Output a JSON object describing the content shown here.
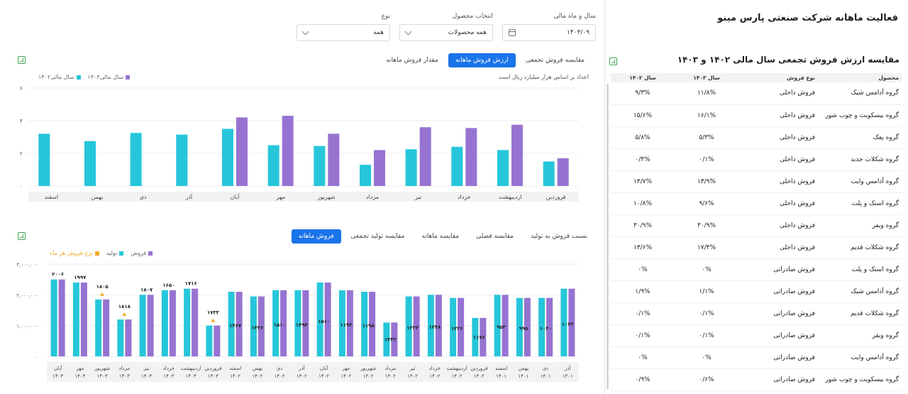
{
  "app_title": "فعالیت ماهانه شرکت صنعتی پارس مینو",
  "filters": {
    "period": {
      "label": "سال و ماه مالی",
      "value": "۱۴۰۳/۰۹"
    },
    "product": {
      "label": "انتخاب محصول",
      "value": "همه محصولات"
    },
    "type": {
      "label": "نوع",
      "value": "همه"
    }
  },
  "top_tabs": [
    {
      "label": "مقدار فروش ماهانه"
    },
    {
      "label": "ارزش فروش ماهانه"
    },
    {
      "label": "مقایسه فروش تجمعی"
    }
  ],
  "top_chart_note": "اعداد بر اساس هزار میلیارد ریال است",
  "top_legend": [
    {
      "label": "سال مالی۱۴۰۳",
      "color": "#9673d1"
    },
    {
      "label": "سال مالی۱۴۰۲",
      "color": "#26c6da"
    }
  ],
  "bottom_tabs": [
    {
      "label": "فروش ماهانه"
    },
    {
      "label": "مقایسه تولید تجمعی"
    },
    {
      "label": "مقایسه ماهانه"
    },
    {
      "label": "مقایسه فصلی"
    },
    {
      "label": "نسبت فروش به تولید"
    }
  ],
  "bottom_legend": [
    {
      "label": "فروش",
      "color": "#9673d1"
    },
    {
      "label": "تولید",
      "color": "#26c6da"
    },
    {
      "label": "نرخ فروش هر ماه",
      "color": "#f5a623"
    }
  ],
  "colors": {
    "series_1402": "#26c6da",
    "series_1403": "#9673d1",
    "rate": "#f5a623",
    "accent": "#1a73e8"
  },
  "chart_data": [
    {
      "type": "bar",
      "categories": [
        "فروردین",
        "اردیبهشت",
        "خرداد",
        "تیر",
        "مرداد",
        "شهریور",
        "مهر",
        "آبان",
        "آذر",
        "دی",
        "بهمن",
        "اسفند"
      ],
      "series": [
        {
          "name": "سال مالی۱۴۰۲",
          "values": [
            1.5,
            2.2,
            2.4,
            2.25,
            1.3,
            2.45,
            2.5,
            3.5,
            3.15,
            3.25,
            2.75,
            3.2
          ]
        },
        {
          "name": "سال مالی۱۴۰۳",
          "values": [
            1.7,
            3.75,
            3.55,
            3.6,
            2.2,
            3.2,
            4.3,
            4.2,
            null,
            null,
            null,
            null
          ]
        }
      ],
      "y_ticks": [
        "۰",
        "۲",
        "۴",
        "۶"
      ],
      "ylim": [
        0,
        6
      ]
    },
    {
      "type": "bar",
      "categories": [
        "آذر ۱۴۰۱",
        "دی ۱۴۰۱",
        "بهمن ۱۴۰۱",
        "اسفند ۱۴۰۱",
        "فروردین ۱۴۰۲",
        "اردیبهشت ۱۴۰۲",
        "خرداد ۱۴۰۲",
        "تیر ۱۴۰۲",
        "مرداد ۱۴۰۲",
        "شهریور ۱۴۰۲",
        "مهر ۱۴۰۲",
        "آبان ۱۴۰۲",
        "آذر ۱۴۰۲",
        "دی ۱۴۰۲",
        "بهمن ۱۴۰۲",
        "اسفند ۱۴۰۲",
        "فروردین ۱۴۰۳",
        "اردیبهشت ۱۴۰۳",
        "خرداد ۱۴۰۳",
        "تیر ۱۴۰۳",
        "مرداد ۱۴۰۳",
        "شهریور ۱۴۰۳",
        "مهر ۱۴۰۳",
        "آبان ۱۴۰۳"
      ],
      "category_labels": [
        [
          "آذر",
          "۱۴۰۱"
        ],
        [
          "دی",
          "۱۴۰۱"
        ],
        [
          "بهمن",
          "۱۴۰۱"
        ],
        [
          "اسفند",
          "۱۴۰۱"
        ],
        [
          "فروردین",
          "۱۴۰۲"
        ],
        [
          "اردیبهشت",
          "۱۴۰۲"
        ],
        [
          "خرداد",
          "۱۴۰۲"
        ],
        [
          "تیر",
          "۱۴۰۲"
        ],
        [
          "مرداد",
          "۱۴۰۲"
        ],
        [
          "شهریور",
          "۱۴۰۲"
        ],
        [
          "مهر",
          "۱۴۰۲"
        ],
        [
          "آبان",
          "۱۴۰۲"
        ],
        [
          "آذر",
          "۱۴۰۲"
        ],
        [
          "دی",
          "۱۴۰۲"
        ],
        [
          "بهمن",
          "۱۴۰۲"
        ],
        [
          "اسفند",
          "۱۴۰۲"
        ],
        [
          "فروردین",
          "۱۴۰۳"
        ],
        [
          "اردیبهشت",
          "۱۴۰۳"
        ],
        [
          "خرداد",
          "۱۴۰۳"
        ],
        [
          "تیر",
          "۱۴۰۳"
        ],
        [
          "مرداد",
          "۱۴۰۳"
        ],
        [
          "شهریور",
          "۱۴۰۳"
        ],
        [
          "مهر",
          "۱۴۰۳"
        ],
        [
          "آبان",
          "۱۴۰۳"
        ]
      ],
      "series": [
        {
          "name": "تولید",
          "values": [
            2200000,
            1900000,
            1900000,
            2000000,
            1250000,
            1900000,
            2000000,
            1950000,
            1100000,
            2100000,
            2150000,
            2400000,
            2150000,
            2150000,
            1950000,
            2100000,
            1000000,
            2200000,
            2150000,
            2000000,
            1200000,
            1850000,
            2400000,
            2500000
          ]
        },
        {
          "name": "فروش",
          "values": [
            2200000,
            1900000,
            1900000,
            2000000,
            1250000,
            1900000,
            2000000,
            1950000,
            1100000,
            2100000,
            2150000,
            2400000,
            2150000,
            2150000,
            1950000,
            2100000,
            1000000,
            2200000,
            2150000,
            2000000,
            1200000,
            1850000,
            2400000,
            2500000
          ]
        },
        {
          "name": "نرخ فروش هر ماه",
          "values": [
            1043,
            1030,
            995,
            953,
            1176,
            1226,
            1248,
            1233,
            1332,
            1198,
            1193,
            1510,
            1494,
            1510,
            1446,
            1467,
            1733,
            1716,
            1650,
            1807,
            1818,
            1805,
            1997,
            2006
          ]
        }
      ],
      "rate_labels": [
        "۱۰۴۳",
        "۱۰۳۰",
        "۹۹۵",
        "۹۵۳",
        "۱۱۷۶",
        "۱۲۲۶",
        "۱۲۴۸",
        "۱۲۳۳",
        "۱۳۳۲",
        "۱۱۹۸",
        "۱۱۹۳",
        "۱۵۱۰",
        "۱۴۹۴",
        "۱۵۱۰",
        "۱۴۴۶",
        "۱۴۶۷",
        "۱۷۳۳",
        "۱۷۱۶",
        "۱۶۵۰",
        "۱۸۰۷",
        "۱۸۱۸",
        "۱۸۰۵",
        "۱۹۹۷",
        "۲۰۰۶"
      ],
      "rate_marker_shown": [
        false,
        false,
        false,
        false,
        false,
        false,
        false,
        false,
        false,
        false,
        false,
        false,
        false,
        false,
        false,
        false,
        true,
        false,
        false,
        false,
        true,
        true,
        false,
        false
      ],
      "y_ticks": [
        "۰",
        "۱,۰۰۰,۰۰۰",
        "۲,۰۰۰,۰۰۰",
        "۳,۰۰۰,۰۰۰"
      ],
      "ylim": [
        0,
        3000000
      ]
    }
  ],
  "table": {
    "title": "مقایسه ارزش فروش تجمعی سال مالی ۱۴۰۲ و ۱۴۰۳",
    "headers": [
      "محصول",
      "نوع فروش",
      "سال ۱۴۰۳",
      "سال ۱۴۰۲"
    ],
    "rows": [
      [
        "گروه آدامس شیک",
        "فروش داخلی",
        "۱۱/۸%",
        "۹/۳%"
      ],
      [
        "گروه بیسکویت و چوب شور",
        "فروش داخلی",
        "۱۶/۱%",
        "۱۵/۶%"
      ],
      [
        "گروه پفک",
        "فروش داخلی",
        "۵/۳%",
        "۵/۸%"
      ],
      [
        "گروه شکلات جدید",
        "فروش داخلی",
        "۰/۱%",
        "۰/۴%"
      ],
      [
        "گروه آدامس وایت",
        "فروش داخلی",
        "۱۳/۹%",
        "۱۳/۷%"
      ],
      [
        "گروه اسنک و پلت",
        "فروش داخلی",
        "۹/۶%",
        "۱۰/۸%"
      ],
      [
        "گروه ویفر",
        "فروش داخلی",
        "۳۰/۹%",
        "۳۰/۹%"
      ],
      [
        "گروه شکلات قدیم",
        "فروش داخلی",
        "۱۷/۴%",
        "۱۳/۶%"
      ],
      [
        "گروه اسنک و پلت",
        "فروش صادراتی",
        "۰%",
        "۰%"
      ],
      [
        "گروه آدامس شیک",
        "فروش صادراتی",
        "۱/۱%",
        "۱/۹%"
      ],
      [
        "گروه شکلات قدیم",
        "فروش صادراتی",
        "۰/۱%",
        "۰/۱%"
      ],
      [
        "گروه ویفر",
        "فروش صادراتی",
        "۰/۱%",
        "۰/۱%"
      ],
      [
        "گروه آدامس وایت",
        "فروش صادراتی",
        "۰%",
        "۰%"
      ],
      [
        "گروه بیسکویت و چوب شور",
        "فروش صادراتی",
        "۰/۶%",
        "۰/۹%"
      ]
    ]
  }
}
